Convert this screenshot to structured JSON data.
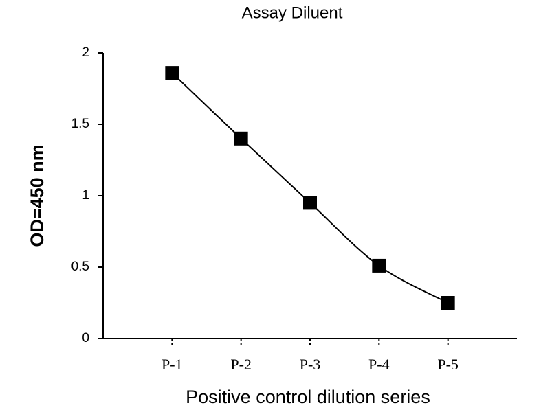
{
  "chart_data": {
    "type": "line",
    "title": "Assay Diluent",
    "x_label": "Positive control dilution series",
    "y_label": "OD=450 nm",
    "categories": [
      "P-1",
      "P-2",
      "P-3",
      "P-4",
      "P-5"
    ],
    "values": [
      1.86,
      1.4,
      0.95,
      0.51,
      0.25
    ],
    "color": "#000000",
    "marker": "square",
    "ylim": [
      0,
      2
    ],
    "yticks": [
      0,
      0.5,
      1,
      1.5,
      2
    ],
    "grid": false
  }
}
